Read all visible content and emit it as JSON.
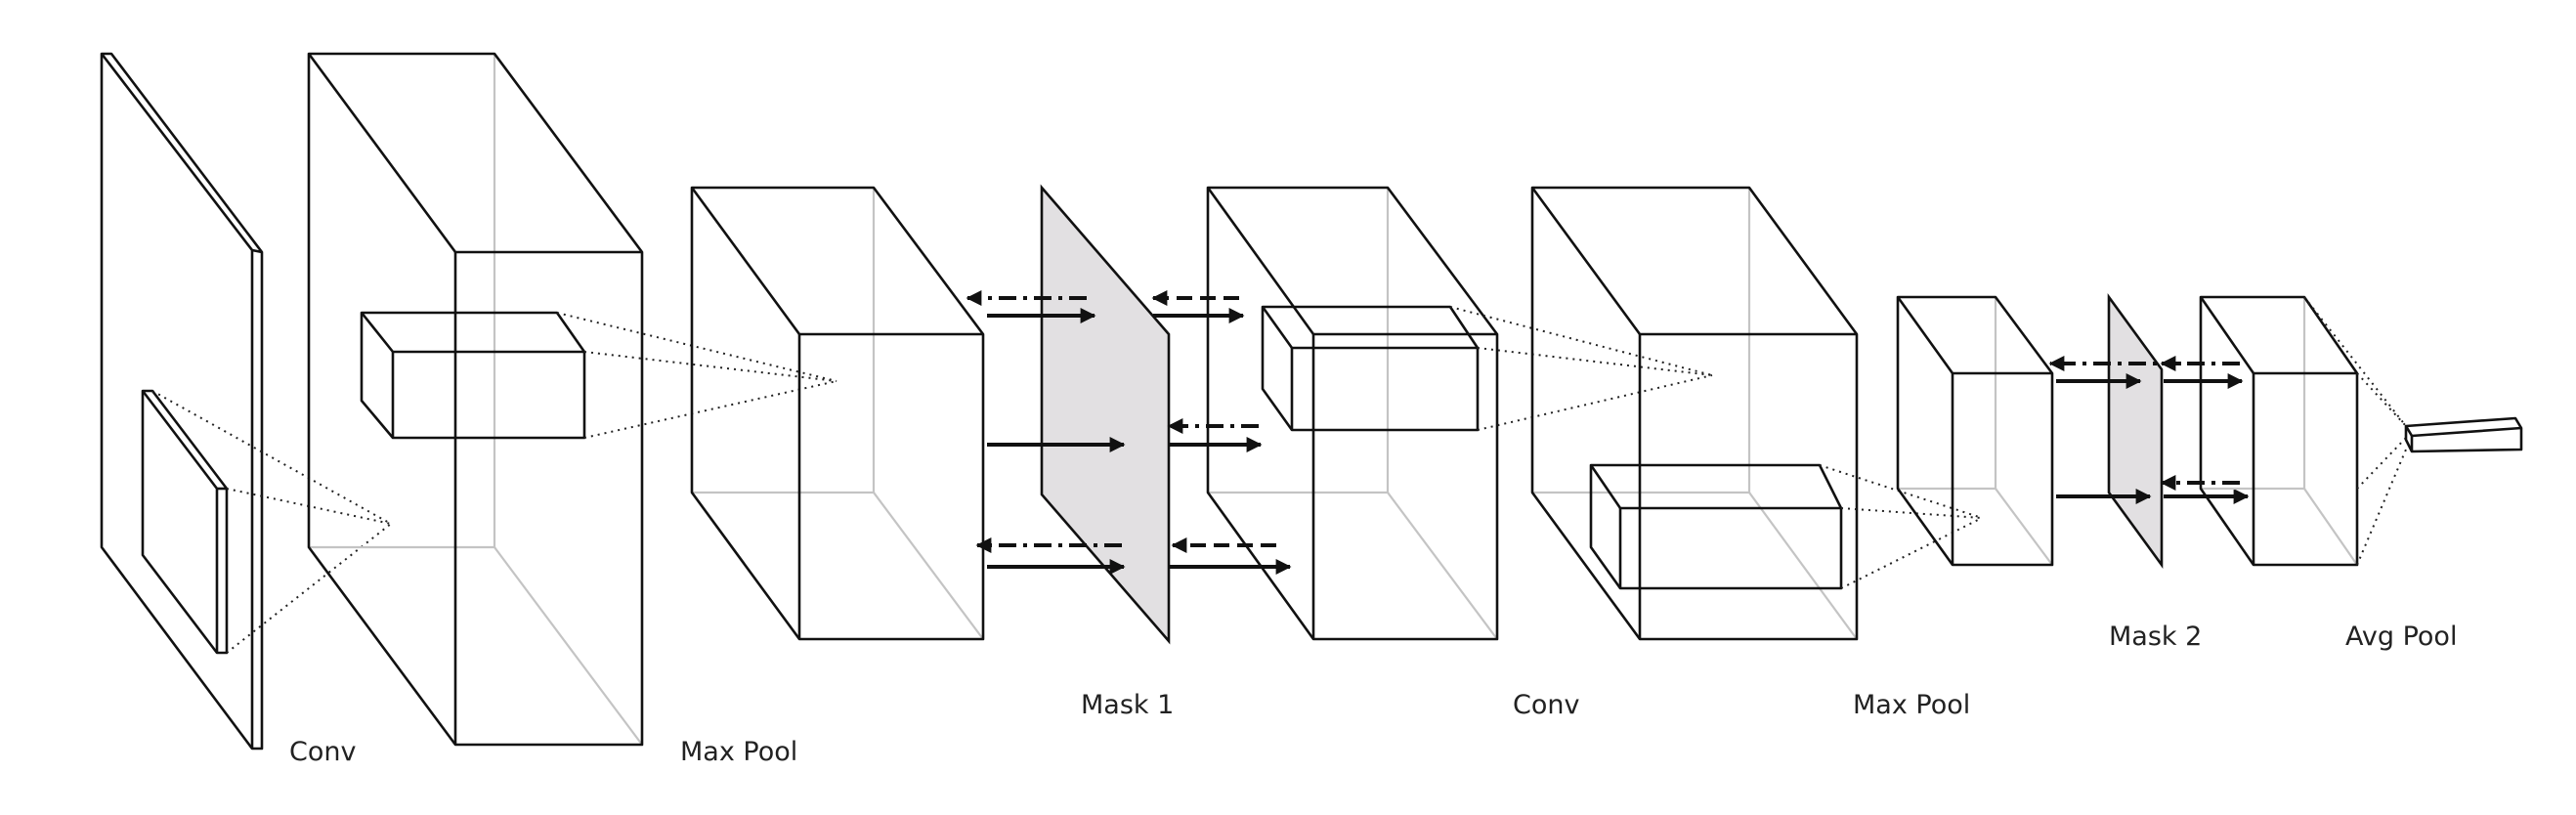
{
  "labels": {
    "conv1": "Conv",
    "maxpool1": "Max Pool",
    "mask1": "Mask 1",
    "conv2": "Conv",
    "maxpool2": "Max Pool",
    "mask2": "Mask 2",
    "avgpool": "Avg Pool"
  },
  "colors": {
    "stroke": "#111111",
    "hidden_edge": "#c4c4c4",
    "mask_fill": "#e2e0e2"
  }
}
